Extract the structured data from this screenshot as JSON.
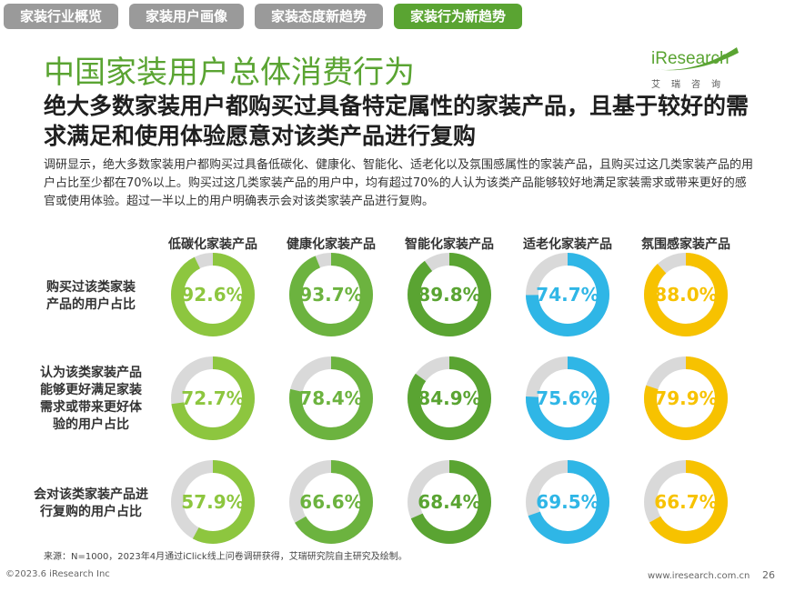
{
  "tabs": [
    "家装行业概览",
    "家装用户画像",
    "家装态度新趋势",
    "家装行为新趋势"
  ],
  "logo": {
    "brand": "iResearch",
    "cn": "艾瑞咨询"
  },
  "title": "中国家装用户总体消费行为",
  "subtitle": "绝大多数家装用户都购买过具备特定属性的家装产品，且基于较好的需求满足和使用体验愿意对该类产品进行复购",
  "description": "调研显示，绝大多数家装用户都购买过具备低碳化、健康化、智能化、适老化以及氛围感属性的家装产品，且购买过这几类家装产品的用户占比至少都在70%以上。购买过这几类家装产品的用户中，均有超过70%的人认为该类产品能够较好地满足家装需求或带来更好的感官或使用体验。超过一半以上的用户明确表示会对该类家装产品进行复购。",
  "chart_data": {
    "type": "donut-grid",
    "unit": "%",
    "categories": [
      "低碳化家装产品",
      "健康化家装产品",
      "智能化家装产品",
      "适老化家装产品",
      "氛围感家装产品"
    ],
    "category_colors": [
      "#8dc63f",
      "#6cb33f",
      "#5aa432",
      "#2fb6e6",
      "#f7c200"
    ],
    "rows": [
      {
        "label": "购买过该类家装产品的用户占比",
        "values": [
          92.6,
          93.7,
          89.8,
          74.7,
          88.0
        ]
      },
      {
        "label": "认为该类家装产品能够更好满足家装需求或带来更好体验的用户占比",
        "values": [
          72.7,
          78.4,
          84.9,
          75.6,
          79.9
        ]
      },
      {
        "label": "会对该类家装产品进行复购的用户占比",
        "values": [
          57.9,
          66.6,
          68.4,
          69.5,
          66.7
        ]
      }
    ]
  },
  "source": "来源：N=1000，2023年4月通过iClick线上问卷调研获得，艾瑞研究院自主研究及绘制。",
  "footer": {
    "copyright": "©2023.6 iResearch Inc",
    "url": "www.iresearch.com.cn",
    "page": "26"
  },
  "colors": {
    "accent": "#5aa432",
    "track": "#d9d9d9",
    "tab_inactive": "#9a9a9a"
  }
}
